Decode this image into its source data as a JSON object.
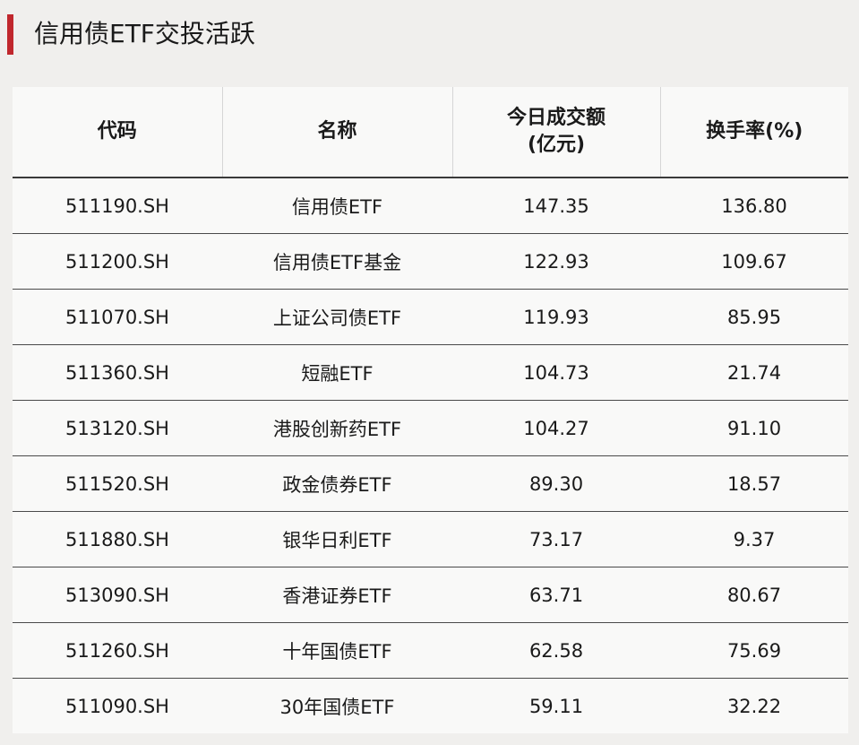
{
  "header": {
    "title": "信用债ETF交投活跃"
  },
  "colors": {
    "accent": "#c0272d",
    "background": "#f0efed"
  },
  "table": {
    "columns": {
      "code": "代码",
      "name": "名称",
      "volume_line1": "今日成交额",
      "volume_line2": "(亿元)",
      "turnover": "换手率(%)"
    },
    "rows": [
      {
        "code": "511190.SH",
        "name": "信用债ETF",
        "volume": "147.35",
        "turnover": "136.80"
      },
      {
        "code": "511200.SH",
        "name": "信用债ETF基金",
        "volume": "122.93",
        "turnover": "109.67"
      },
      {
        "code": "511070.SH",
        "name": "上证公司债ETF",
        "volume": "119.93",
        "turnover": "85.95"
      },
      {
        "code": "511360.SH",
        "name": "短融ETF",
        "volume": "104.73",
        "turnover": "21.74"
      },
      {
        "code": "513120.SH",
        "name": "港股创新药ETF",
        "volume": "104.27",
        "turnover": "91.10"
      },
      {
        "code": "511520.SH",
        "name": "政金债券ETF",
        "volume": "89.30",
        "turnover": "18.57"
      },
      {
        "code": "511880.SH",
        "name": "银华日利ETF",
        "volume": "73.17",
        "turnover": "9.37"
      },
      {
        "code": "513090.SH",
        "name": "香港证券ETF",
        "volume": "63.71",
        "turnover": "80.67"
      },
      {
        "code": "511260.SH",
        "name": "十年国债ETF",
        "volume": "62.58",
        "turnover": "75.69"
      },
      {
        "code": "511090.SH",
        "name": "30年国债ETF",
        "volume": "59.11",
        "turnover": "32.22"
      }
    ]
  }
}
